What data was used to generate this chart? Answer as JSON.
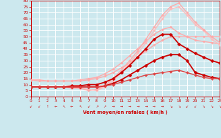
{
  "background_color": "#cce8ee",
  "grid_color": "#aacccc",
  "xlabel": "Vent moyen/en rafales ( km/h )",
  "xlim": [
    0,
    23
  ],
  "ylim": [
    0,
    80
  ],
  "xticks": [
    0,
    1,
    2,
    3,
    4,
    5,
    6,
    7,
    8,
    9,
    10,
    11,
    12,
    13,
    14,
    15,
    16,
    17,
    18,
    19,
    20,
    21,
    22,
    23
  ],
  "yticks": [
    0,
    5,
    10,
    15,
    20,
    25,
    30,
    35,
    40,
    45,
    50,
    55,
    60,
    65,
    70,
    75,
    80
  ],
  "lines": [
    {
      "comment": "light pink - rises gently to ~50",
      "x": [
        0,
        1,
        2,
        3,
        4,
        5,
        6,
        7,
        8,
        9,
        10,
        11,
        12,
        13,
        14,
        15,
        16,
        17,
        18,
        19,
        20,
        21,
        22,
        23
      ],
      "y": [
        14,
        14,
        13,
        13,
        13,
        13,
        13,
        14,
        15,
        17,
        20,
        24,
        28,
        33,
        38,
        43,
        47,
        50,
        50,
        50,
        50,
        50,
        50,
        50
      ],
      "color": "#ffaaaa",
      "lw": 1.0,
      "marker": "D",
      "ms": 1.8
    },
    {
      "comment": "light pink - rises to ~55 then drops",
      "x": [
        0,
        1,
        2,
        3,
        4,
        5,
        6,
        7,
        8,
        9,
        10,
        11,
        12,
        13,
        14,
        15,
        16,
        17,
        18,
        19,
        20,
        21,
        22,
        23
      ],
      "y": [
        14,
        13,
        13,
        13,
        13,
        13,
        14,
        15,
        16,
        19,
        23,
        28,
        34,
        40,
        46,
        52,
        56,
        58,
        53,
        50,
        47,
        46,
        45,
        44
      ],
      "color": "#ffaaaa",
      "lw": 1.0,
      "marker": "D",
      "ms": 1.8
    },
    {
      "comment": "light pink peak ~75 at x=18",
      "x": [
        0,
        1,
        2,
        3,
        4,
        5,
        6,
        7,
        8,
        9,
        10,
        11,
        12,
        13,
        14,
        15,
        16,
        17,
        18,
        19,
        20,
        21,
        22,
        23
      ],
      "y": [
        8,
        8,
        8,
        8,
        8,
        8,
        7,
        6,
        5,
        8,
        13,
        20,
        28,
        36,
        45,
        55,
        65,
        73,
        75,
        68,
        60,
        55,
        48,
        43
      ],
      "color": "#ffbbbb",
      "lw": 1.0,
      "marker": "D",
      "ms": 1.8
    },
    {
      "comment": "medium pink peak ~78 at x=18",
      "x": [
        0,
        1,
        2,
        3,
        4,
        5,
        6,
        7,
        8,
        9,
        10,
        11,
        12,
        13,
        14,
        15,
        16,
        17,
        18,
        19,
        20,
        21,
        22,
        23
      ],
      "y": [
        8,
        8,
        8,
        8,
        8,
        7,
        7,
        5,
        6,
        9,
        15,
        22,
        30,
        38,
        48,
        58,
        68,
        75,
        78,
        70,
        62,
        56,
        50,
        45
      ],
      "color": "#ffaaaa",
      "lw": 1.0,
      "marker": "D",
      "ms": 1.8
    },
    {
      "comment": "dark red - peaks ~52 at x=16-17",
      "x": [
        0,
        1,
        2,
        3,
        4,
        5,
        6,
        7,
        8,
        9,
        10,
        11,
        12,
        13,
        14,
        15,
        16,
        17,
        18,
        19,
        20,
        21,
        22,
        23
      ],
      "y": [
        8,
        8,
        8,
        8,
        8,
        9,
        9,
        10,
        10,
        12,
        15,
        20,
        26,
        33,
        40,
        48,
        52,
        52,
        44,
        40,
        36,
        33,
        30,
        28
      ],
      "color": "#cc0000",
      "lw": 1.3,
      "marker": "D",
      "ms": 2.5
    },
    {
      "comment": "dark red flat-ish then peaks ~35",
      "x": [
        0,
        1,
        2,
        3,
        4,
        5,
        6,
        7,
        8,
        9,
        10,
        11,
        12,
        13,
        14,
        15,
        16,
        17,
        18,
        19,
        20,
        21,
        22,
        23
      ],
      "y": [
        8,
        8,
        8,
        8,
        8,
        8,
        8,
        8,
        8,
        9,
        11,
        14,
        18,
        22,
        26,
        30,
        33,
        35,
        35,
        30,
        20,
        18,
        16,
        15
      ],
      "color": "#cc0000",
      "lw": 1.3,
      "marker": "D",
      "ms": 2.5
    },
    {
      "comment": "medium red - very flat rising slowly to ~20",
      "x": [
        0,
        1,
        2,
        3,
        4,
        5,
        6,
        7,
        8,
        9,
        10,
        11,
        12,
        13,
        14,
        15,
        16,
        17,
        18,
        19,
        20,
        21,
        22,
        23
      ],
      "y": [
        8,
        8,
        8,
        8,
        8,
        8,
        8,
        8,
        8,
        9,
        10,
        12,
        14,
        16,
        18,
        19,
        20,
        21,
        22,
        20,
        18,
        16,
        15,
        15
      ],
      "color": "#dd4444",
      "lw": 1.0,
      "marker": "D",
      "ms": 2.0
    }
  ],
  "arrow_symbols": [
    "↙",
    "↙",
    "↑",
    "←",
    "↖",
    "←",
    "↖",
    "↙",
    "↗",
    "↗",
    "→",
    "→",
    "→",
    "→",
    "→",
    "→",
    "→",
    "↘",
    "↘",
    "↙",
    "↙",
    "↘",
    "↘",
    "↘"
  ],
  "tick_color": "#cc0000",
  "axis_color": "#cc0000",
  "xlabel_color": "#cc0000"
}
